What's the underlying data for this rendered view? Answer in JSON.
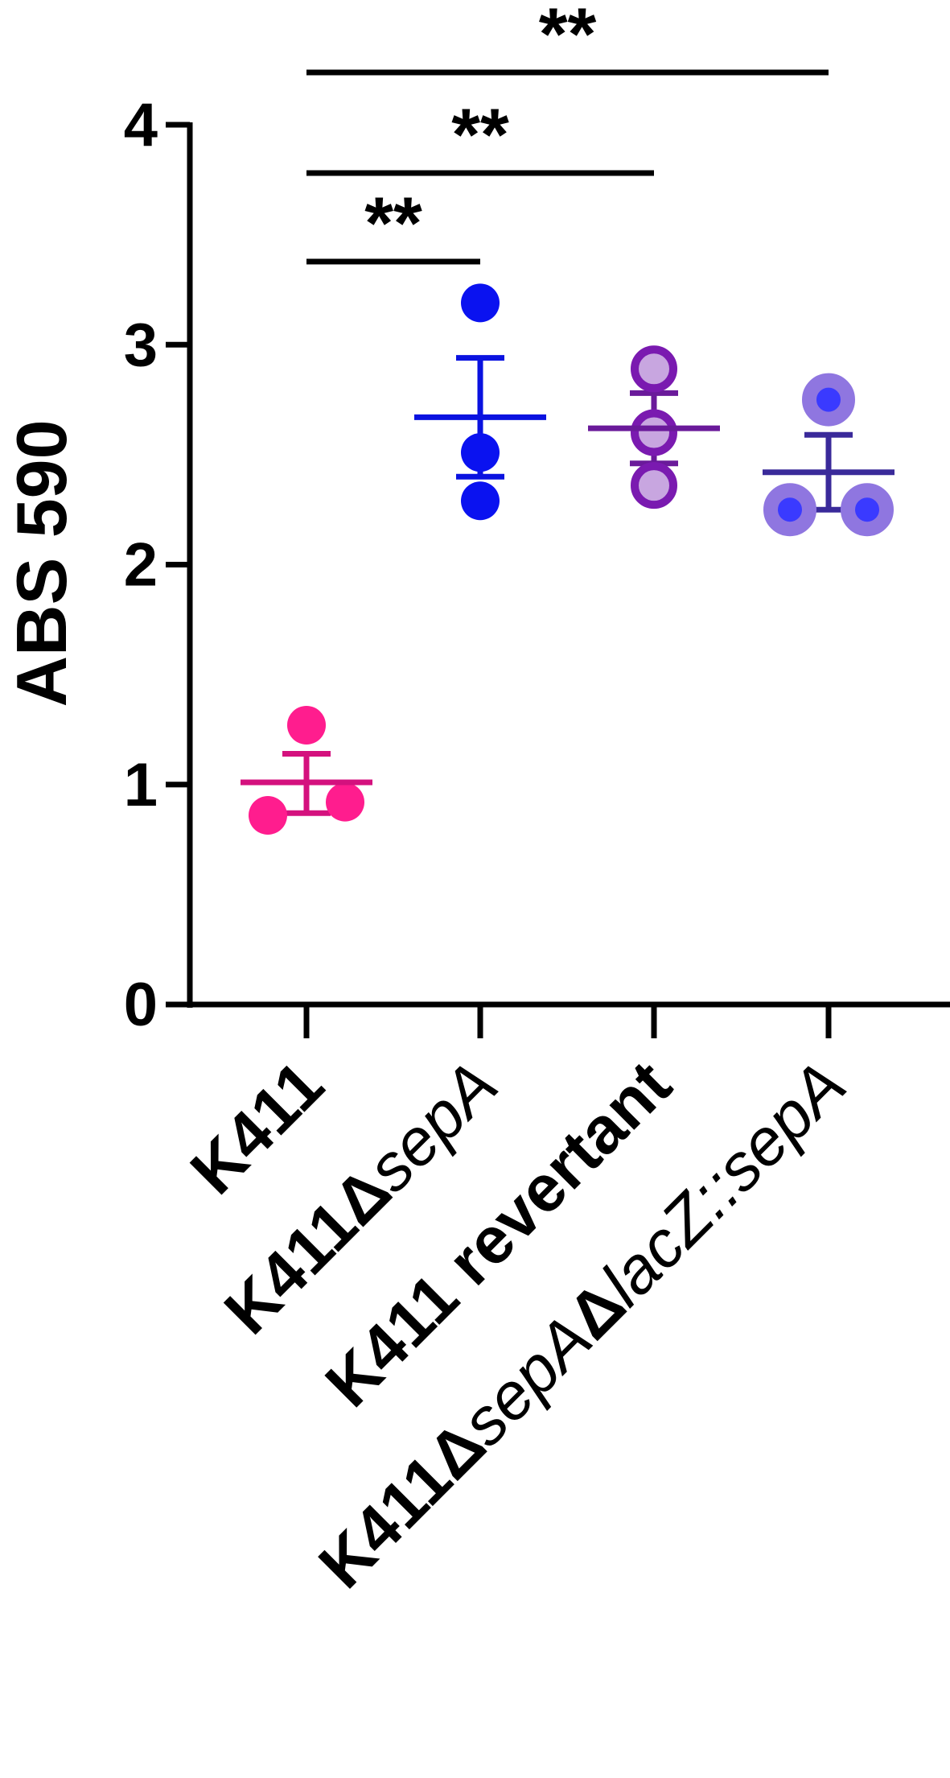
{
  "chart_data": {
    "type": "scatter",
    "title": "",
    "xlabel": "",
    "ylabel": "ABS 590",
    "ylim": [
      0,
      4
    ],
    "yticks": [
      "0",
      "1",
      "2",
      "3",
      "4"
    ],
    "grid": false,
    "legend": "none",
    "categories": [
      {
        "id": "k411",
        "parts": [
          {
            "text": "K411",
            "style": "bold"
          }
        ]
      },
      {
        "id": "k411-delta-sepA",
        "parts": [
          {
            "text": "K411Δ",
            "style": "bold"
          },
          {
            "text": "sepA",
            "style": "italic"
          }
        ]
      },
      {
        "id": "k411-revertant",
        "parts": [
          {
            "text": "K411 revertant",
            "style": "bold"
          }
        ]
      },
      {
        "id": "k411-delta-sepA-lacZ-sepA",
        "parts": [
          {
            "text": "K411Δ",
            "style": "bold"
          },
          {
            "text": "sepA",
            "style": "italic"
          },
          {
            "text": "Δ",
            "style": "bold"
          },
          {
            "text": "lacZ::sepA",
            "style": "italic"
          }
        ]
      }
    ],
    "series": [
      {
        "category": "K411",
        "points": [
          1.27,
          0.86,
          0.92
        ],
        "mean": 1.01,
        "sem": [
          0.87,
          1.14
        ],
        "point_fill": "#ff1d8e",
        "point_ring": "#ff1d8e",
        "line_color": "#d4117e"
      },
      {
        "category": "K411ΔsepA",
        "points": [
          3.19,
          2.51,
          2.29
        ],
        "mean": 2.67,
        "sem": [
          2.4,
          2.94
        ],
        "point_fill": "#0a12f0",
        "point_ring": "#0a12f0",
        "line_color": "#0a12e0"
      },
      {
        "category": "K411 revertant",
        "points": [
          2.89,
          2.6,
          2.36
        ],
        "mean": 2.62,
        "sem": [
          2.46,
          2.78
        ],
        "point_fill": "#c8a6e0",
        "point_ring": "#7a1ab0",
        "line_color": "#6a1a9a"
      },
      {
        "category": "K411ΔsepAΔlacZ::sepA",
        "points": [
          2.75,
          2.25,
          2.25
        ],
        "mean": 2.42,
        "sem": [
          2.25,
          2.59
        ],
        "point_fill": "#3a3aff",
        "point_ring": "#8f76e0",
        "line_color": "#3a2a9a"
      }
    ],
    "significance": [
      {
        "from": 0,
        "to": 1,
        "label": "**"
      },
      {
        "from": 0,
        "to": 2,
        "label": "**"
      },
      {
        "from": 0,
        "to": 3,
        "label": "**"
      }
    ]
  }
}
